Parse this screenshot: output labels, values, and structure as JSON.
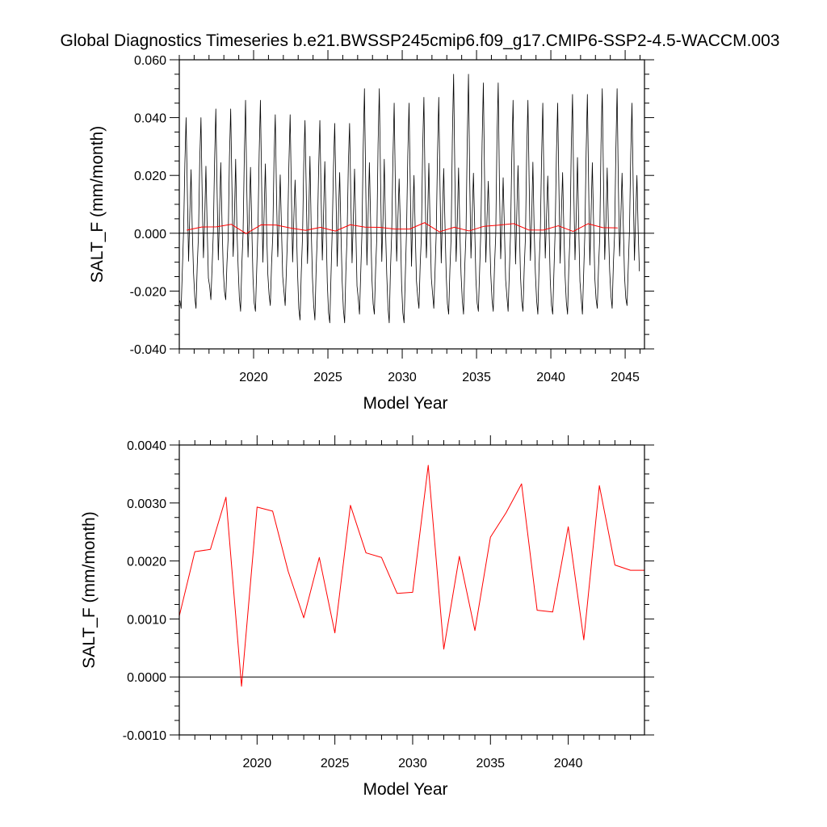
{
  "title": "Global Diagnostics Timeseries b.e21.BWSSP245cmip6.f09_g17.CMIP6-SSP2-4.5-WACCM.003",
  "colors": {
    "monthly": "#000000",
    "annual": "#ff0000",
    "zero_line": "#000000"
  },
  "chart_data": [
    {
      "type": "line",
      "xlabel": "Model Year",
      "ylabel": "SALT_F (mm/month)",
      "xlim": [
        2015,
        2046.3
      ],
      "ylim": [
        -0.04,
        0.06
      ],
      "xticks": [
        2020,
        2025,
        2030,
        2035,
        2040,
        2045
      ],
      "xtick_labels": [
        "2020",
        "2025",
        "2030",
        "2035",
        "2040",
        "2045"
      ],
      "yticks": [
        -0.04,
        -0.02,
        0.0,
        0.02,
        0.04,
        0.06
      ],
      "ytick_labels": [
        "-0.040",
        "-0.020",
        "0.000",
        "0.020",
        "0.040",
        "0.060"
      ],
      "grid": false,
      "legend": "none",
      "reference_line": 0,
      "series": [
        {
          "kind": "monthly",
          "start_year": 2015,
          "months": 372,
          "annual_peaks": [
            0.04,
            0.043,
            0.046,
            0.041,
            0.039,
            0.038,
            0.05,
            0.045,
            0.047,
            0.055,
            0.052,
            0.046,
            0.045,
            0.048,
            0.05,
            0.045,
            0.043
          ],
          "secondary_peaks": [
            0.022,
            0.025,
            0.024,
            0.019,
            0.026,
            0.021,
            0.025,
            0.02,
            0.023,
            0.022,
            0.018,
            0.024,
            0.021,
            0.025,
            0.022,
            0.02,
            0.023
          ],
          "troughs": [
            -0.026,
            -0.023,
            -0.027,
            -0.025,
            -0.03,
            -0.031,
            -0.028,
            -0.031,
            -0.026,
            -0.028,
            -0.027,
            -0.027,
            -0.028,
            -0.028,
            -0.026,
            -0.025,
            -0.024
          ]
        },
        {
          "kind": "annual",
          "x": [
            2015.5,
            2016.5,
            2017.5,
            2018.5,
            2019.5,
            2020.5,
            2021.5,
            2022.5,
            2023.5,
            2024.5,
            2025.5,
            2026.5,
            2027.5,
            2028.5,
            2029.5,
            2030.5,
            2031.5,
            2032.5,
            2033.5,
            2034.5,
            2035.5,
            2036.5,
            2037.5,
            2038.5,
            2039.5,
            2040.5,
            2041.5,
            2042.5,
            2043.5,
            2044.5
          ],
          "y": [
            0.00105,
            0.00215,
            0.0022,
            0.0031,
            -0.00015,
            0.0029,
            0.00285,
            0.0018,
            0.001,
            0.00205,
            0.00075,
            0.00295,
            0.0021,
            0.00205,
            0.00145,
            0.00145,
            0.00365,
            0.00048,
            0.00207,
            0.0008,
            0.0024,
            0.00282,
            0.00333,
            0.00114,
            0.0011,
            0.00258,
            0.00063,
            0.00329,
            0.00193,
            0.00184
          ]
        }
      ]
    },
    {
      "type": "line",
      "xlabel": "Model Year",
      "ylabel": "SALT_F (mm/month)",
      "xlim": [
        2015,
        2044.9
      ],
      "ylim": [
        -0.001,
        0.004
      ],
      "xticks": [
        2020,
        2025,
        2030,
        2035,
        2040
      ],
      "xtick_labels": [
        "2020",
        "2025",
        "2030",
        "2035",
        "2040"
      ],
      "yticks": [
        -0.001,
        0.0,
        0.001,
        0.002,
        0.003,
        0.004
      ],
      "ytick_labels": [
        "-0.0010",
        "0.0000",
        "0.0010",
        "0.0020",
        "0.0030",
        "0.0040"
      ],
      "grid": false,
      "legend": "none",
      "reference_line": 0,
      "series": [
        {
          "kind": "annual",
          "x": [
            2015.0,
            2016.0,
            2017.0,
            2018.0,
            2019.0,
            2020.0,
            2021.0,
            2022.0,
            2023.0,
            2024.0,
            2025.0,
            2026.0,
            2027.0,
            2028.0,
            2029.0,
            2030.0,
            2031.0,
            2032.0,
            2033.0,
            2034.0,
            2035.0,
            2036.0,
            2037.0,
            2038.0,
            2039.0,
            2040.0,
            2041.0,
            2042.0,
            2043.0,
            2044.0,
            2044.9
          ],
          "y": [
            0.00105,
            0.00216,
            0.0022,
            0.0031,
            -0.00016,
            0.00293,
            0.00286,
            0.00182,
            0.00102,
            0.00206,
            0.00076,
            0.00296,
            0.00214,
            0.00206,
            0.00144,
            0.00146,
            0.00365,
            0.00048,
            0.00208,
            0.0008,
            0.00241,
            0.00283,
            0.00333,
            0.00115,
            0.00112,
            0.00259,
            0.00064,
            0.0033,
            0.00193,
            0.00184,
            0.00184
          ]
        }
      ]
    }
  ]
}
